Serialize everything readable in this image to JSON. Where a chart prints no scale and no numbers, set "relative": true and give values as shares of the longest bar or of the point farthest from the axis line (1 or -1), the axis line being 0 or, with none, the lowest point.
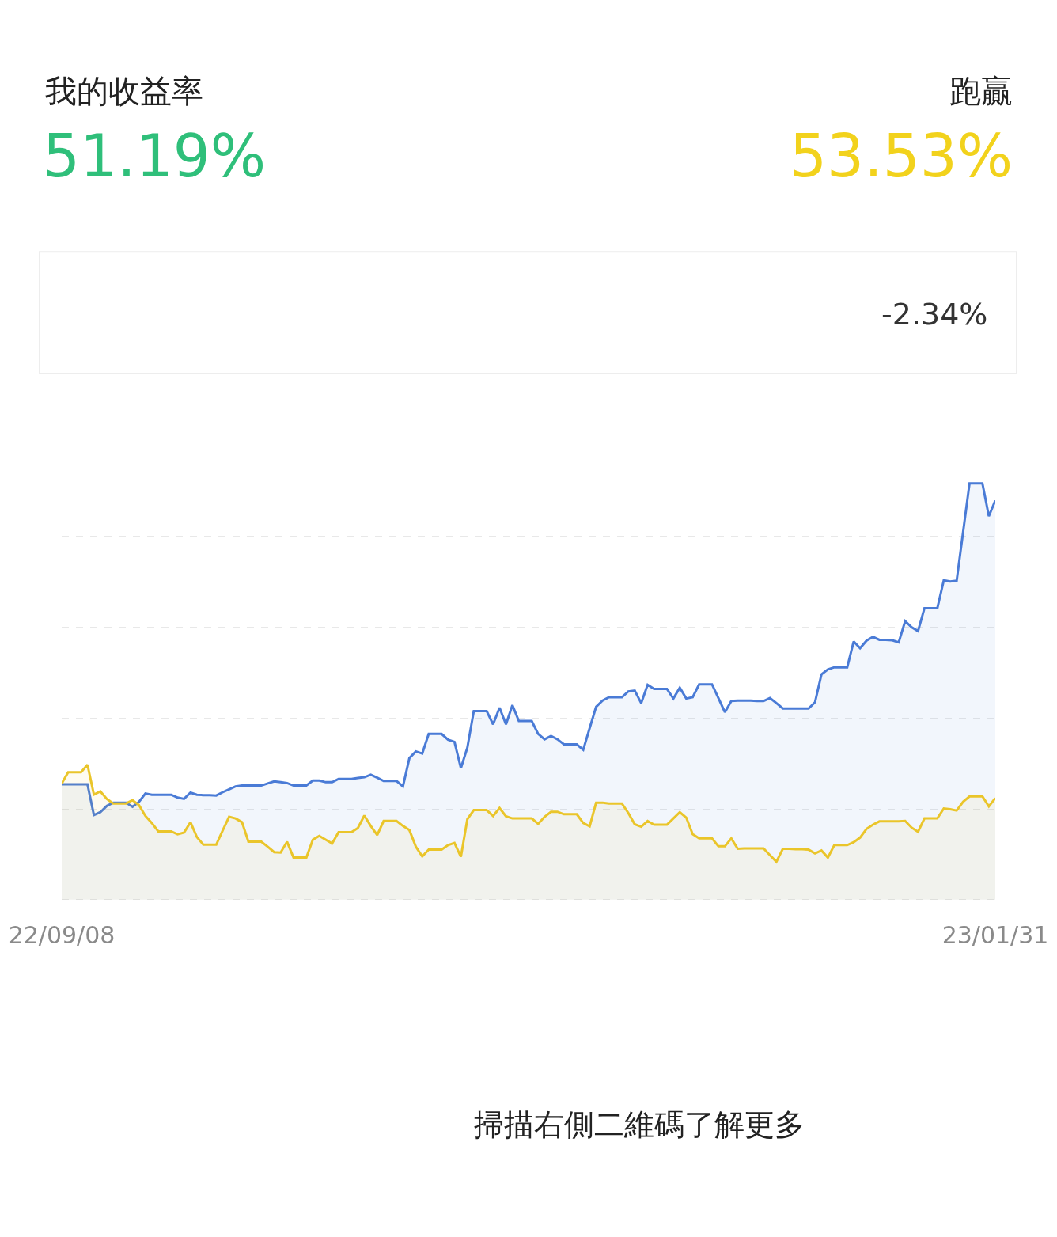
{
  "chart_data": {
    "type": "area",
    "relative": true,
    "grid": "y",
    "tick_labels": "x",
    "annotations": [
      "我的收益率",
      "51.19%",
      "跑贏",
      "53.53%",
      "-2.34%",
      "掃描右側二維碼了解更多"
    ],
    "categories": [
      "22/09/08",
      null,
      null,
      null,
      null,
      null,
      null,
      null,
      null,
      null,
      null,
      null,
      null,
      null,
      null,
      null,
      null,
      null,
      null,
      null,
      null,
      null,
      null,
      null,
      null,
      null,
      null,
      null,
      null,
      null,
      null,
      null,
      null,
      null,
      null,
      null,
      null,
      null,
      null,
      null,
      null,
      null,
      null,
      null,
      null,
      null,
      null,
      null,
      null,
      null,
      null,
      null,
      null,
      null,
      null,
      null,
      null,
      null,
      null,
      null,
      null,
      null,
      null,
      null,
      null,
      null,
      null,
      null,
      null,
      null,
      null,
      null,
      null,
      null,
      null,
      null,
      null,
      null,
      null,
      null,
      null,
      null,
      null,
      null,
      null,
      null,
      null,
      null,
      null,
      null,
      null,
      null,
      null,
      null,
      null,
      null,
      null,
      null,
      null,
      null,
      null,
      null,
      null,
      null,
      null,
      null,
      null,
      null,
      null,
      null,
      null,
      null,
      null,
      null,
      null,
      null,
      null,
      null,
      null,
      null,
      null,
      null,
      null,
      null,
      null,
      null,
      null,
      null,
      null,
      null,
      null,
      null,
      null,
      null,
      null,
      null,
      null,
      null,
      null,
      null,
      null,
      null,
      null,
      null,
      null,
      "23/01/31"
    ],
    "series": [
      {
        "color": "#4a7bd6",
        "values": [
          0.277,
          0.277,
          0.277,
          0.277,
          0.277,
          0.203,
          0.21,
          0.225,
          0.233,
          0.233,
          0.233,
          0.223,
          0.235,
          0.255,
          0.252,
          0.252,
          0.252,
          0.252,
          0.245,
          0.242,
          0.257,
          0.252,
          0.251,
          0.251,
          0.25,
          0.258,
          0.265,
          0.272,
          0.274,
          0.274,
          0.274,
          0.274,
          0.279,
          0.284,
          0.282,
          0.28,
          0.274,
          0.274,
          0.274,
          0.286,
          0.286,
          0.282,
          0.282,
          0.29,
          0.29,
          0.29,
          0.292,
          0.294,
          0.3,
          0.293,
          0.285,
          0.285,
          0.285,
          0.272,
          0.34,
          0.356,
          0.351,
          0.398,
          0.398,
          0.398,
          0.384,
          0.379,
          0.316,
          0.365,
          0.453,
          0.453,
          0.453,
          0.421,
          0.461,
          0.421,
          0.467,
          0.429,
          0.429,
          0.429,
          0.398,
          0.385,
          0.393,
          0.385,
          0.373,
          0.373,
          0.373,
          0.36,
          0.412,
          0.463,
          0.478,
          0.486,
          0.486,
          0.486,
          0.5,
          0.502,
          0.472,
          0.516,
          0.506,
          0.506,
          0.506,
          0.483,
          0.509,
          0.483,
          0.486,
          0.517,
          0.517,
          0.517,
          0.484,
          0.45,
          0.477,
          0.478,
          0.478,
          0.478,
          0.477,
          0.477,
          0.484,
          0.472,
          0.459,
          0.459,
          0.459,
          0.459,
          0.459,
          0.474,
          0.541,
          0.553,
          0.558,
          0.558,
          0.558,
          0.62,
          0.604,
          0.622,
          0.631,
          0.624,
          0.624,
          0.623,
          0.618,
          0.669,
          0.654,
          0.645,
          0.7,
          0.7,
          0.7,
          0.767,
          0.764,
          0.766,
          0.883,
          1.0,
          1.0,
          1.0,
          0.921,
          0.959
        ]
      },
      {
        "color": "#eac52a",
        "values": [
          0.279,
          0.306,
          0.306,
          0.306,
          0.324,
          0.252,
          0.26,
          0.242,
          0.231,
          0.231,
          0.231,
          0.239,
          0.227,
          0.201,
          0.184,
          0.164,
          0.164,
          0.164,
          0.157,
          0.161,
          0.186,
          0.15,
          0.132,
          0.132,
          0.132,
          0.166,
          0.199,
          0.195,
          0.186,
          0.139,
          0.139,
          0.139,
          0.127,
          0.114,
          0.113,
          0.139,
          0.101,
          0.101,
          0.101,
          0.144,
          0.153,
          0.144,
          0.135,
          0.162,
          0.162,
          0.162,
          0.172,
          0.202,
          0.177,
          0.155,
          0.189,
          0.189,
          0.189,
          0.177,
          0.167,
          0.127,
          0.104,
          0.12,
          0.12,
          0.12,
          0.131,
          0.136,
          0.103,
          0.193,
          0.215,
          0.215,
          0.215,
          0.201,
          0.22,
          0.2,
          0.195,
          0.195,
          0.195,
          0.195,
          0.182,
          0.199,
          0.211,
          0.211,
          0.205,
          0.205,
          0.205,
          0.184,
          0.176,
          0.233,
          0.233,
          0.231,
          0.231,
          0.231,
          0.208,
          0.181,
          0.175,
          0.189,
          0.18,
          0.18,
          0.18,
          0.195,
          0.21,
          0.197,
          0.157,
          0.147,
          0.147,
          0.147,
          0.128,
          0.128,
          0.147,
          0.122,
          0.123,
          0.123,
          0.123,
          0.123,
          0.107,
          0.091,
          0.122,
          0.122,
          0.121,
          0.121,
          0.12,
          0.111,
          0.118,
          0.101,
          0.131,
          0.131,
          0.131,
          0.138,
          0.149,
          0.17,
          0.18,
          0.188,
          0.188,
          0.188,
          0.188,
          0.189,
          0.173,
          0.163,
          0.195,
          0.195,
          0.195,
          0.219,
          0.217,
          0.214,
          0.235,
          0.248,
          0.248,
          0.248,
          0.224,
          0.244
        ]
      }
    ]
  }
}
